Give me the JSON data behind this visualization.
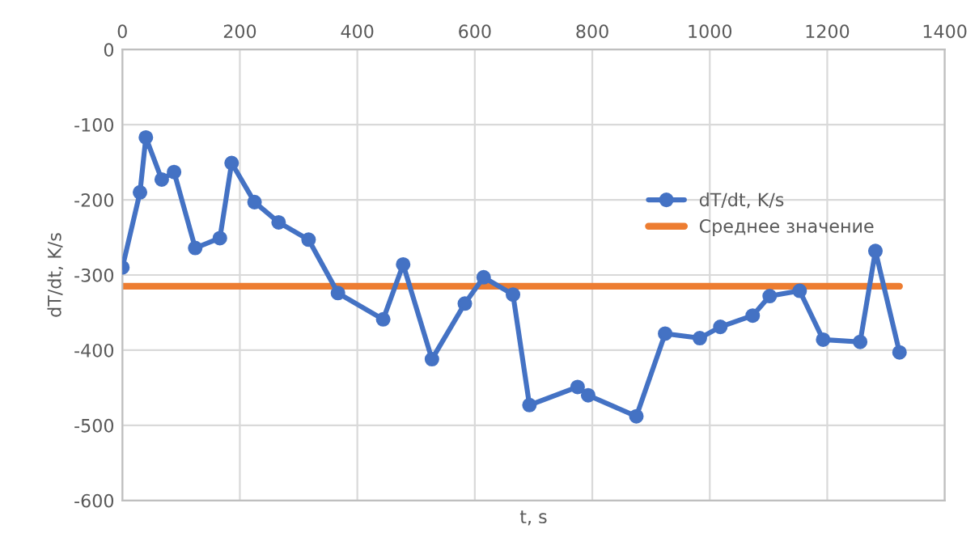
{
  "chart_data": {
    "type": "line",
    "xlabel": "t, s",
    "ylabel": "dT/dt, K/s",
    "xlim": [
      0,
      1400
    ],
    "xticks": [
      0,
      200,
      400,
      600,
      800,
      1000,
      1200,
      1400
    ],
    "ylim": [
      -600,
      0
    ],
    "yticks": [
      -600,
      -500,
      -400,
      -300,
      -200,
      -100,
      0
    ],
    "grid": true,
    "legend": "right",
    "marker": "circle",
    "line_style": "solid",
    "series": [
      {
        "name": "dT/dt, K/s",
        "color": "#4472c4",
        "x": [
          0,
          30,
          40,
          67,
          88,
          124,
          166,
          186,
          225,
          266,
          317,
          367,
          444,
          478,
          527,
          583,
          615,
          665,
          693,
          775,
          793,
          875,
          924,
          983,
          1018,
          1073,
          1102,
          1153,
          1193,
          1256,
          1282,
          1323
        ],
        "values": [
          -290,
          -190,
          -117,
          -173,
          -163,
          -264,
          -251,
          -151,
          -203,
          -230,
          -253,
          -324,
          -359,
          -286,
          -412,
          -338,
          -303,
          -326,
          -473,
          -449,
          -460,
          -488,
          -378,
          -384,
          -369,
          -354,
          -328,
          -321,
          -386,
          -389,
          -268,
          -403
        ]
      },
      {
        "name": "Среднее значение",
        "color": "#ed7d31",
        "type": "line",
        "marker": "none",
        "x": [
          0,
          1323
        ],
        "values": [
          -315,
          -315
        ]
      }
    ]
  }
}
